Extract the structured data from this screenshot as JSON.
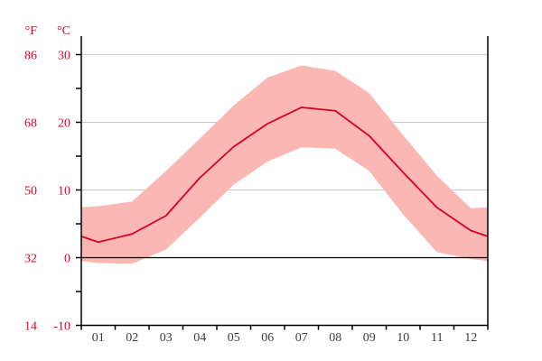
{
  "chart_data": {
    "type": "line",
    "subtype": "mean-line-with-min-max-band",
    "title": "",
    "months": [
      "01",
      "02",
      "03",
      "04",
      "05",
      "06",
      "07",
      "08",
      "09",
      "10",
      "11",
      "12"
    ],
    "mean_c": [
      2.3,
      3.5,
      6.2,
      11.8,
      16.4,
      19.8,
      22.2,
      21.7,
      18.0,
      12.6,
      7.4,
      4.0
    ],
    "max_c": [
      7.6,
      8.3,
      12.8,
      17.6,
      22.5,
      26.6,
      28.4,
      27.6,
      24.3,
      18.1,
      12.1,
      7.3
    ],
    "min_c": [
      -0.8,
      -0.9,
      1.2,
      5.9,
      10.8,
      14.2,
      16.3,
      16.1,
      12.8,
      6.4,
      0.8,
      -0.2
    ],
    "y_axis": {
      "unit_f": "°F",
      "unit_c": "°C",
      "ticks_c": [
        30,
        20,
        10,
        0,
        -10
      ],
      "ticks_f": [
        86,
        68,
        50,
        32,
        14
      ],
      "minor_ticks_c": [
        25,
        15,
        5,
        -5
      ],
      "range_c": [
        -10,
        32.7
      ],
      "gridlines_c": [
        30,
        20,
        10
      ],
      "zero_line_c": 0
    },
    "legend": [],
    "grid": "horizontal-only",
    "colors": {
      "mean_line": "#d90022",
      "band_fill": "#fab7b4",
      "axis_label_red": "#e4002b",
      "month_label": "#3c3c3c",
      "gridline": "#c8c8c8",
      "zero_line": "#000000",
      "axis_line": "#000000",
      "background": "#ffffff"
    }
  }
}
